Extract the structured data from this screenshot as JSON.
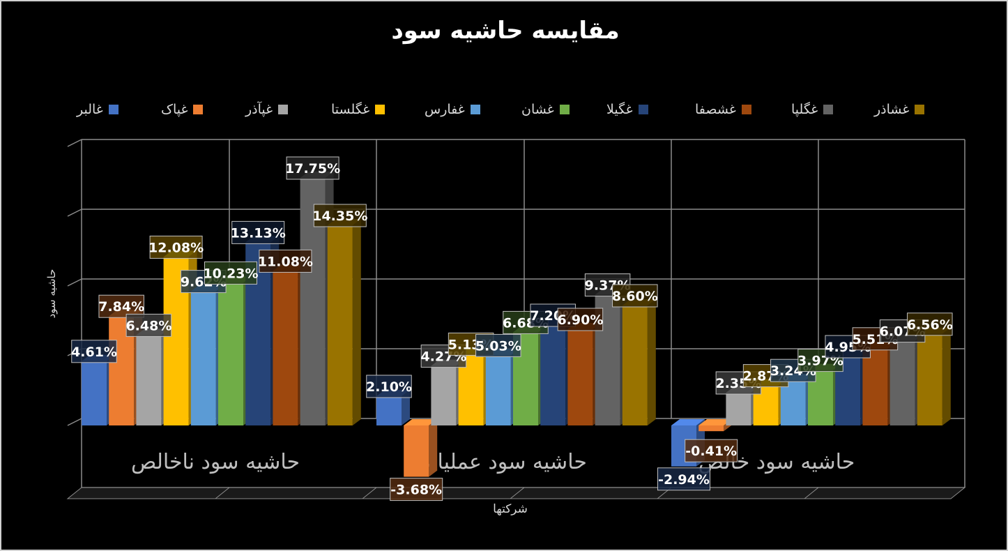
{
  "chart_data": {
    "type": "bar",
    "title": "مقایسه حاشیه سود",
    "xlabel": "شرکتها",
    "ylabel": "حاشیه سود",
    "categories": [
      "حاشیه سود ناخالص",
      "حاشیه سود عملیاتی",
      "حاشیه سود خالص"
    ],
    "ylim": [
      -4,
      20
    ],
    "grid": true,
    "legend_position": "top",
    "series": [
      {
        "name": "غالبر",
        "color": "#4472C4",
        "values": [
          4.61,
          2.1,
          -2.94
        ],
        "labels": [
          "4.61%",
          "2.10%",
          "-2.94%"
        ]
      },
      {
        "name": "غپاک",
        "color": "#ED7D31",
        "values": [
          7.84,
          -3.68,
          -0.41
        ],
        "labels": [
          "7.84%",
          "-3.68%",
          "-0.41%"
        ]
      },
      {
        "name": "غپآذر",
        "color": "#A5A5A5",
        "values": [
          6.48,
          4.27,
          2.35
        ],
        "labels": [
          "6.48%",
          "4.27%",
          "2.35%"
        ]
      },
      {
        "name": "غگلستا",
        "color": "#FFC000",
        "values": [
          12.08,
          5.13,
          2.87
        ],
        "labels": [
          "12.08%",
          "5.13%",
          "2.87%"
        ]
      },
      {
        "name": "غفارس",
        "color": "#5B9BD5",
        "values": [
          9.62,
          5.03,
          3.24
        ],
        "labels": [
          "9.62%",
          "5.03%",
          "3.24%"
        ]
      },
      {
        "name": "غشان",
        "color": "#70AD47",
        "values": [
          10.23,
          6.68,
          3.97
        ],
        "labels": [
          "10.23%",
          "6.68%",
          "3.97%"
        ]
      },
      {
        "name": "غگیلا",
        "color": "#264478",
        "values": [
          13.13,
          7.2,
          4.95
        ],
        "labels": [
          "13.13%",
          "7.20%",
          "4.95%"
        ]
      },
      {
        "name": "غشصفا",
        "color": "#9E480E",
        "values": [
          11.08,
          6.9,
          5.51
        ],
        "labels": [
          "11.08%",
          "6.90%",
          "5.51%"
        ]
      },
      {
        "name": "غگلپا",
        "color": "#636363",
        "values": [
          17.75,
          9.37,
          6.07
        ],
        "labels": [
          "17.75%",
          "9.37%",
          "6.07%"
        ]
      },
      {
        "name": "غشاذر",
        "color": "#997300",
        "values": [
          14.35,
          8.6,
          6.56
        ],
        "labels": [
          "14.35%",
          "8.60%",
          "6.56%"
        ]
      }
    ]
  }
}
